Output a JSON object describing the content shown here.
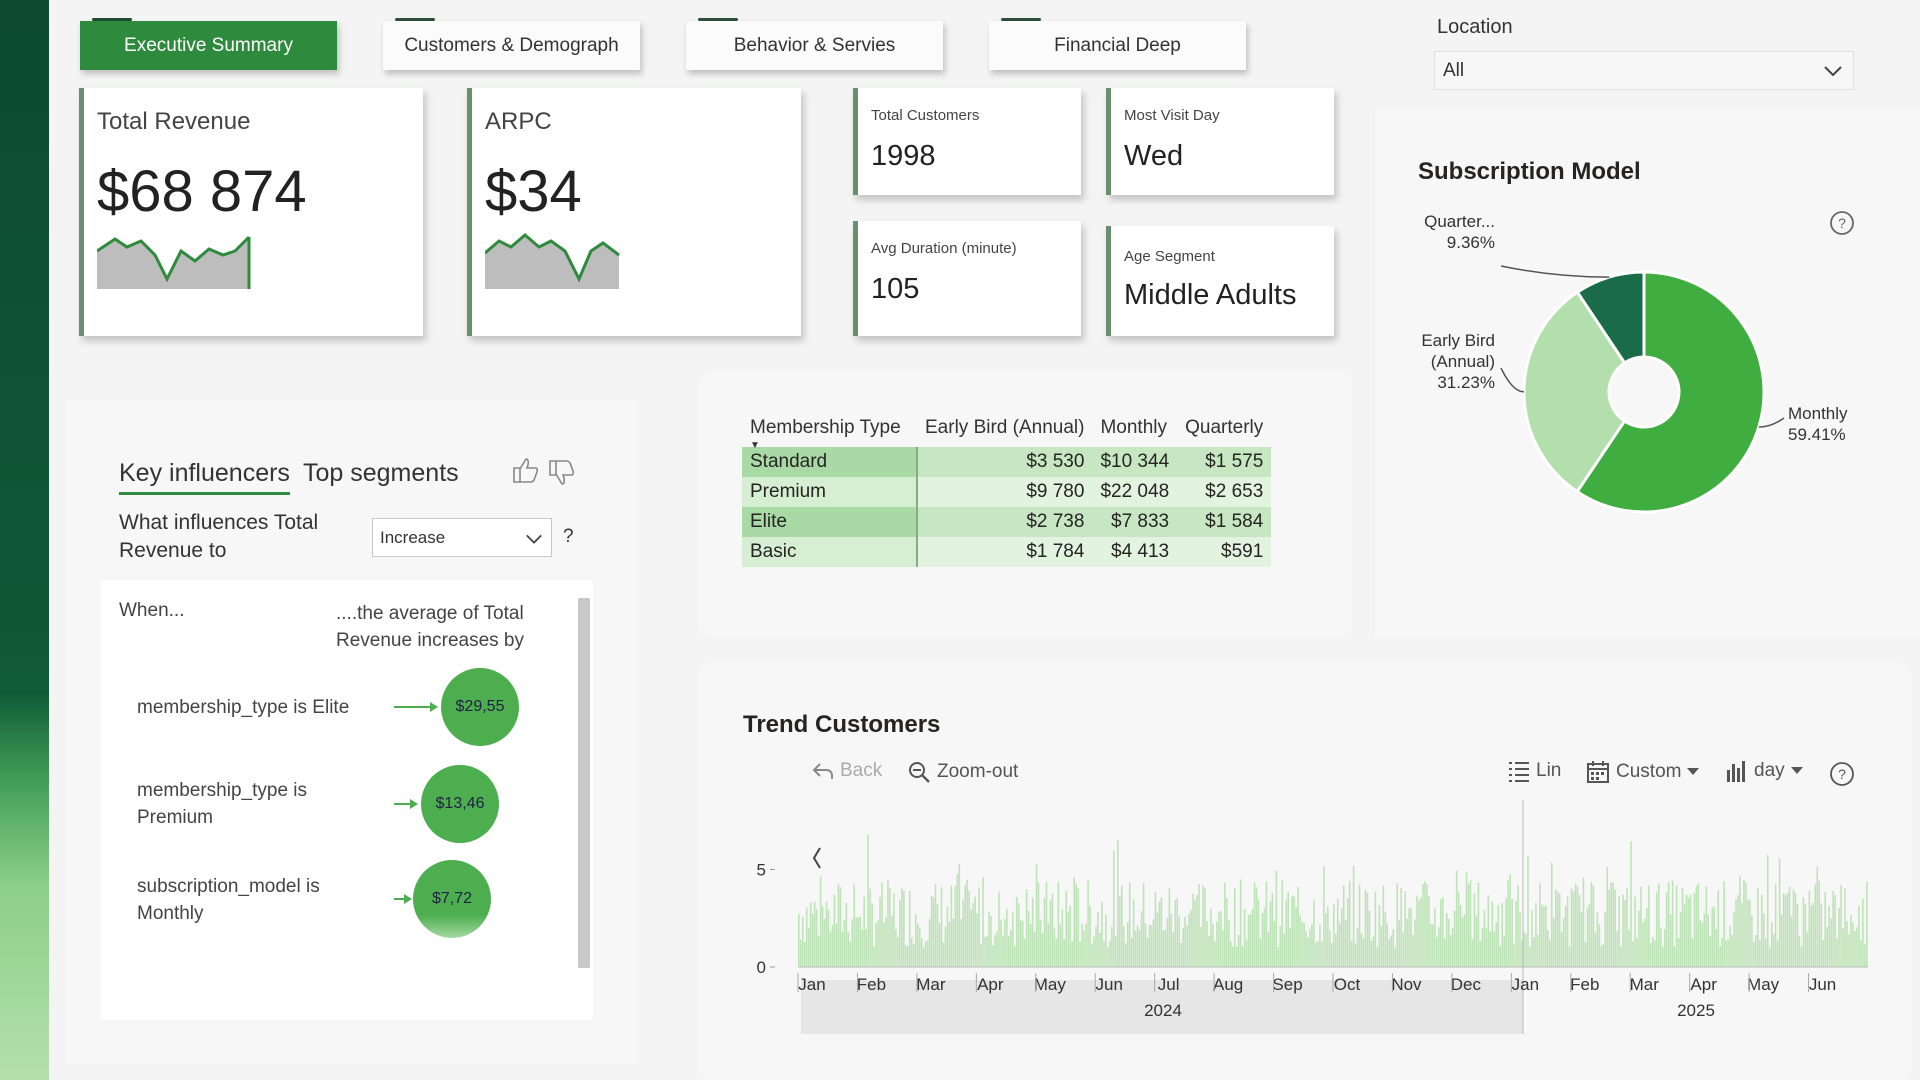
{
  "tabs": [
    {
      "label": "Executive Summary",
      "active": true
    },
    {
      "label": "Customers & Demograph",
      "active": false
    },
    {
      "label": "Behavior & Servies",
      "active": false
    },
    {
      "label": "Financial Deep",
      "active": false
    }
  ],
  "location": {
    "label": "Location",
    "value": "All"
  },
  "kpis": {
    "total_revenue": {
      "label": "Total Revenue",
      "value": "$68 874"
    },
    "arpc": {
      "label": "ARPC",
      "value": "$34"
    },
    "total_customers": {
      "label": "Total Customers",
      "value": "1998"
    },
    "most_visit_day": {
      "label": "Most Visit Day",
      "value": "Wed"
    },
    "avg_duration": {
      "label": "Avg Duration (minute)",
      "value": "105"
    },
    "age_segment": {
      "label": "Age Segment",
      "value": "Middle Adults"
    }
  },
  "key_influencers": {
    "tabs": [
      "Key influencers",
      "Top segments"
    ],
    "question": "What influences Total Revenue to",
    "dropdown_value": "Increase",
    "help": "?",
    "col_when": "When...",
    "col_avg": "....the average of Total Revenue increases by",
    "items": [
      {
        "condition": "membership_type is Elite",
        "value": "$29,55",
        "magnitude": 29.55
      },
      {
        "condition": "membership_type is Premium",
        "value": "$13,46",
        "magnitude": 13.46
      },
      {
        "condition": "subscription_model is Monthly",
        "value": "$7,72",
        "magnitude": 7.72
      }
    ]
  },
  "matrix": {
    "headers": [
      "Membership Type",
      "Early Bird (Annual)",
      "Monthly",
      "Quarterly"
    ],
    "rows": [
      [
        "Standard",
        "$3 530",
        "$10 344",
        "$1 575"
      ],
      [
        "Premium",
        "$9 780",
        "$22 048",
        "$2 653"
      ],
      [
        "Elite",
        "$2 738",
        "$7 833",
        "$1 584"
      ],
      [
        "Basic",
        "$1 784",
        "$4 413",
        "$591"
      ]
    ]
  },
  "colors": {
    "accent": "#2e8b3d",
    "dark_green": "#1a6b47",
    "light_green": "#b3dfac",
    "mid_green": "#3fad3f"
  },
  "chart_data": [
    {
      "type": "pie",
      "title": "Subscription Model",
      "slices": [
        {
          "label": "Monthly",
          "value": 59.41,
          "pct_text": "59.41%",
          "color": "#3fad3f"
        },
        {
          "label": "Early Bird (Annual)",
          "value": 31.23,
          "pct_text": "31.23%",
          "color": "#b3dfac"
        },
        {
          "label": "Quarter...",
          "value": 9.36,
          "pct_text": "9.36%",
          "color": "#1a6b47"
        }
      ],
      "donut": true
    },
    {
      "type": "bar",
      "title": "Trend Customers",
      "y_ticks": [
        "0",
        "5"
      ],
      "ylim": [
        0,
        8
      ],
      "months": [
        "Jan",
        "Feb",
        "Mar",
        "Apr",
        "May",
        "Jun",
        "Jul",
        "Aug",
        "Sep",
        "Oct",
        "Nov",
        "Dec",
        "Jan",
        "Feb",
        "Mar",
        "Apr",
        "May",
        "Jun"
      ],
      "years": [
        "2024",
        "2025"
      ],
      "note": "daily customer counts, approx. 0-8 per day",
      "toolbar": {
        "back": "Back",
        "zoom_out": "Zoom-out",
        "lin": "Lin",
        "custom": "Custom",
        "day": "day"
      }
    }
  ]
}
